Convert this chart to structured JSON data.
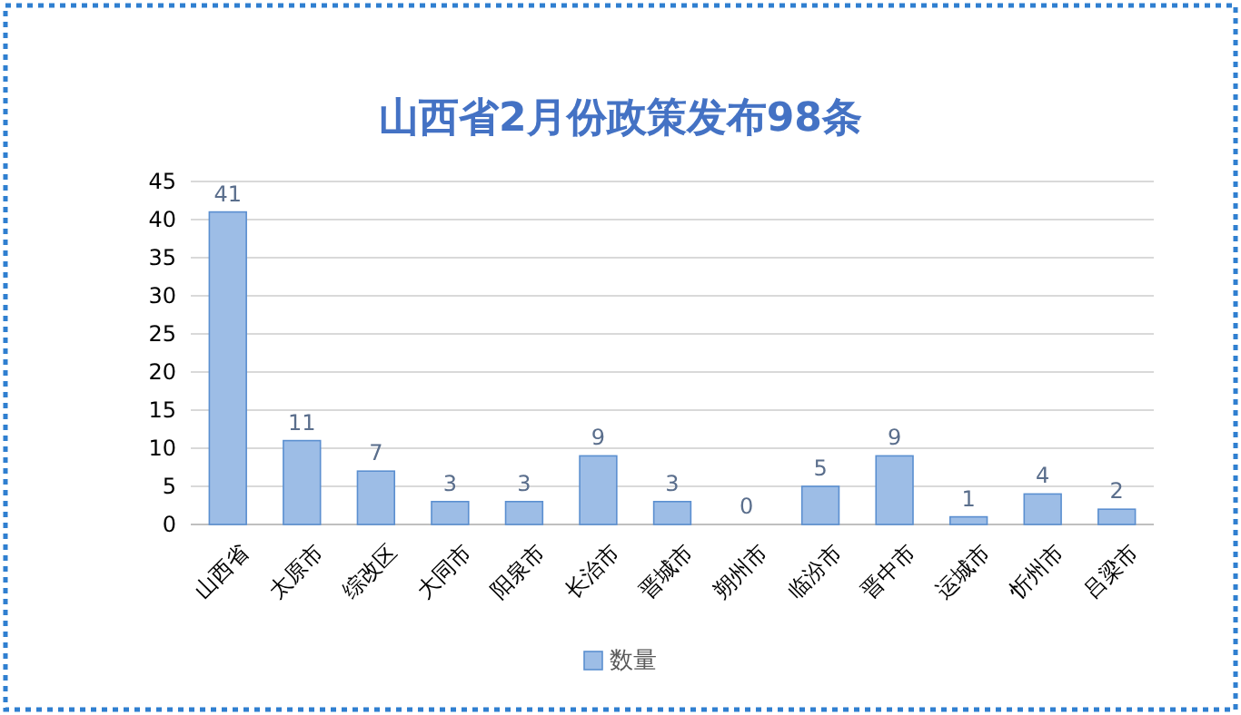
{
  "chart_data": {
    "type": "bar",
    "title": "山西省2月份政策发布98条",
    "categories": [
      "山西省",
      "太原市",
      "综改区",
      "大同市",
      "阳泉市",
      "长治市",
      "晋城市",
      "朔州市",
      "临汾市",
      "晋中市",
      "运城市",
      "忻州市",
      "吕梁市"
    ],
    "series": [
      {
        "name": "数量",
        "color": "#9dbde6",
        "values": [
          41,
          11,
          7,
          3,
          3,
          9,
          3,
          0,
          5,
          9,
          1,
          4,
          2
        ]
      }
    ],
    "ylim": [
      0,
      45
    ],
    "yticks": [
      0,
      5,
      10,
      15,
      20,
      25,
      30,
      35,
      40,
      45
    ],
    "grid": "y",
    "legend": "bottom",
    "data_labels": true
  }
}
